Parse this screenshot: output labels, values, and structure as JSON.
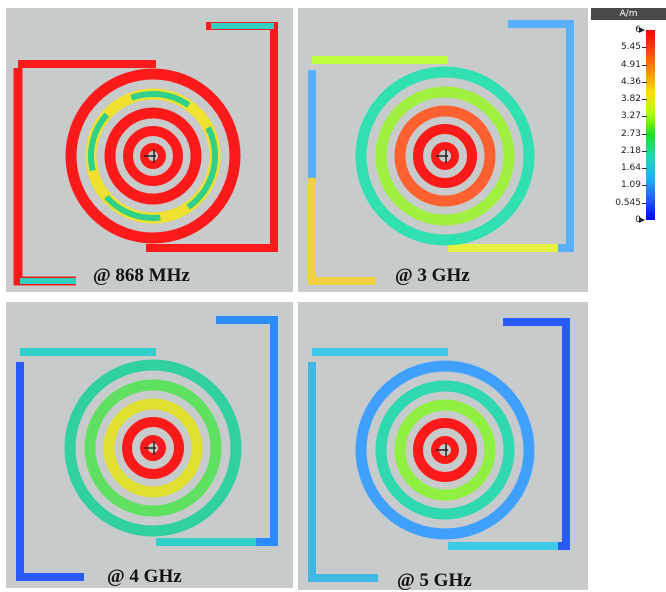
{
  "panels": [
    {
      "label": "@ 868 MHz"
    },
    {
      "label": "@ 3 GHz"
    },
    {
      "label": "@ 4 GHz"
    },
    {
      "label": "@ 5 GHz"
    }
  ],
  "legend": {
    "unit": "A/m",
    "ticks": [
      "6",
      "5.45",
      "4.91",
      "4.36",
      "3.82",
      "3.27",
      "2.73",
      "2.18",
      "1.64",
      "1.09",
      "0.545",
      "0"
    ]
  },
  "colors": {
    "background": "#c8cbcc",
    "high": "#ff1a1a",
    "mid": "#2fd08a",
    "low": "#2a5bff"
  }
}
